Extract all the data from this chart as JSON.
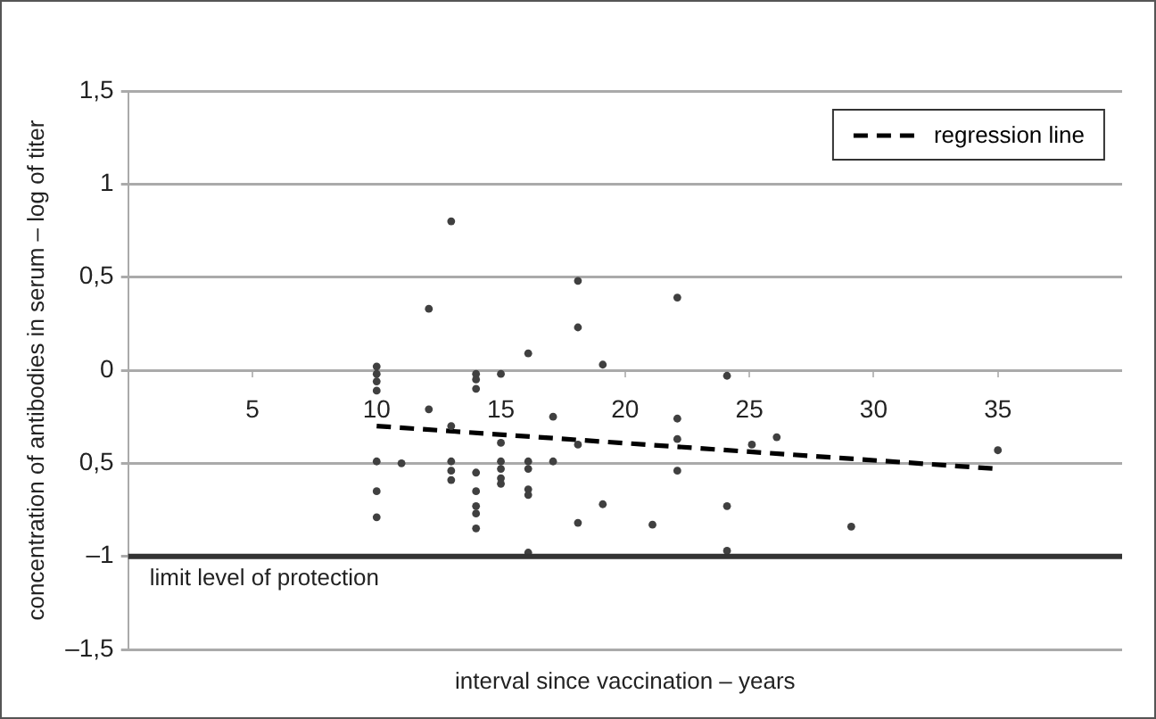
{
  "chart_data": {
    "type": "scatter",
    "xlabel": "interval since vaccination – years",
    "ylabel": "concentration of antibodies in serum – log of titer",
    "xlim": [
      0,
      40
    ],
    "xticks": [
      5,
      10,
      15,
      20,
      25,
      30,
      35
    ],
    "ylim": [
      -1.5,
      1.5
    ],
    "yticks": [
      {
        "value": -1.5,
        "label": "–1,5"
      },
      {
        "value": -1,
        "label": "–1"
      },
      {
        "value": -0.5,
        "label": "0,5"
      },
      0,
      {
        "value": 0.5,
        "label": "0,5"
      },
      1,
      {
        "value": 1.5,
        "label": "1,5"
      }
    ],
    "grid": "y",
    "legend": "top right",
    "marker": "circle",
    "ref_lines": [
      {
        "axis": "y",
        "value": -1,
        "label": "limit level of protection",
        "color": "#333333"
      }
    ],
    "series": [
      {
        "type": "scatter",
        "color": "#404040",
        "x": [
          13,
          12.1,
          10,
          10,
          10,
          10,
          14,
          14,
          14,
          15,
          16.1,
          12.1,
          17.1,
          13,
          15,
          10,
          11,
          13,
          13,
          13,
          14,
          14,
          14,
          14,
          14,
          15,
          15,
          15,
          15,
          16.1,
          16.1,
          16.1,
          16.1,
          17.1,
          10,
          10,
          16.1,
          18.1,
          22.1,
          18.1,
          19.1,
          24.1,
          22.1,
          22.1,
          18.1,
          25.1,
          26.1,
          22.1,
          19.1,
          24.1,
          18.1,
          21.1,
          29.1,
          24.1,
          35
        ],
        "values": [
          0.8,
          0.33,
          0.02,
          -0.02,
          -0.06,
          -0.11,
          -0.02,
          -0.05,
          -0.1,
          -0.02,
          0.09,
          -0.21,
          -0.25,
          -0.3,
          -0.39,
          -0.49,
          -0.5,
          -0.49,
          -0.54,
          -0.59,
          -0.55,
          -0.65,
          -0.73,
          -0.77,
          -0.85,
          -0.49,
          -0.53,
          -0.58,
          -0.61,
          -0.49,
          -0.53,
          -0.64,
          -0.67,
          -0.49,
          -0.65,
          -0.79,
          -0.98,
          0.48,
          0.39,
          0.23,
          0.03,
          -0.03,
          -0.26,
          -0.37,
          -0.4,
          -0.4,
          -0.36,
          -0.54,
          -0.72,
          -0.73,
          -0.82,
          -0.83,
          -0.84,
          -0.97,
          -0.43
        ]
      },
      {
        "type": "line",
        "name": "regression line",
        "color": "#000000",
        "line_style": "dashed",
        "marker": "none",
        "x": [
          10,
          35
        ],
        "values": [
          -0.3,
          -0.53
        ]
      }
    ]
  }
}
